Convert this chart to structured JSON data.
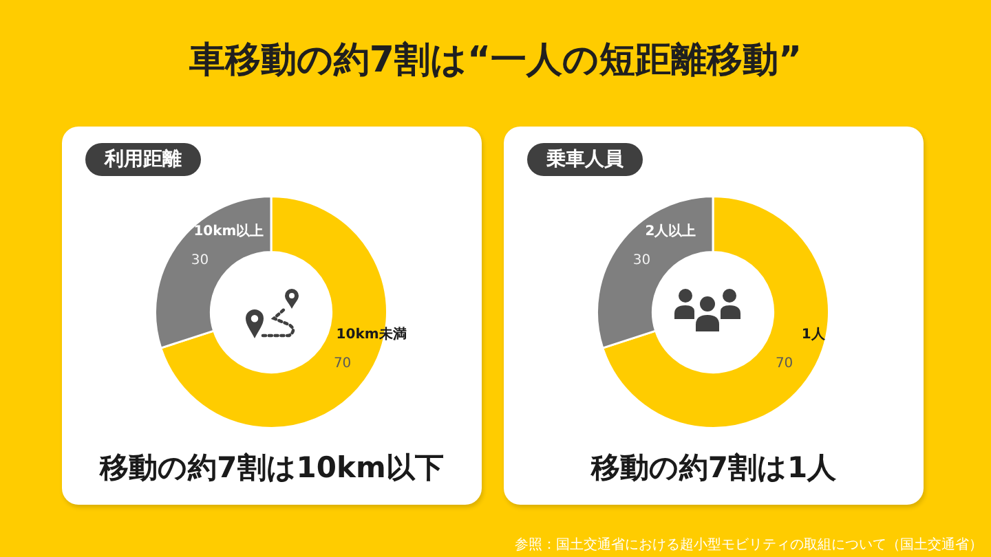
{
  "chart_data": [
    {
      "type": "other",
      "title": "車移動の約7割は“一人の短距離移動”",
      "annotations": [
        "参照：国土交通省における超小型モビリティの取組について（国土交通省）"
      ]
    },
    {
      "type": "donut",
      "title": "利用距離",
      "categories": [
        "10km未満",
        "10km以上"
      ],
      "values": [
        70,
        30
      ],
      "colors": [
        "#ffcc00",
        "#7f7f7f"
      ],
      "data_labels": true,
      "annotations": [
        "移動の約7割は10km以下"
      ]
    },
    {
      "type": "donut",
      "title": "乗車人員",
      "categories": [
        "1人",
        "2人以上"
      ],
      "values": [
        70,
        30
      ],
      "colors": [
        "#ffcc00",
        "#7f7f7f"
      ],
      "data_labels": true,
      "annotations": [
        "移動の約7割は1人"
      ]
    }
  ]
}
